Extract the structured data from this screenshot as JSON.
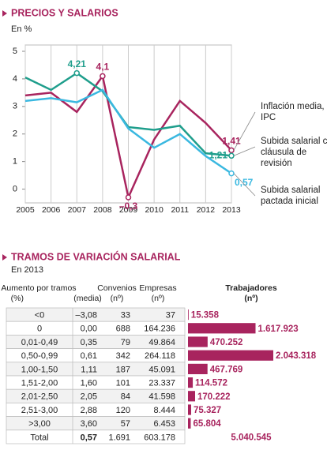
{
  "chart_data": {
    "type": "line",
    "title": "PRECIOS Y SALARIOS",
    "subtitle": "En %",
    "x": [
      2005,
      2006,
      2007,
      2008,
      2009,
      2010,
      2011,
      2012,
      2013
    ],
    "xlim": [
      2005,
      2013
    ],
    "xticks": [
      2005,
      2006,
      2007,
      2008,
      2009,
      2010,
      2011,
      2012,
      2013
    ],
    "ylim": [
      -0.5,
      5
    ],
    "yticks": [
      0,
      1,
      2,
      3,
      4,
      5
    ],
    "grid": true,
    "series": [
      {
        "name": "Inflación media, IPC",
        "color": "#a8245e",
        "values": [
          3.4,
          3.5,
          2.8,
          4.1,
          -0.3,
          1.8,
          3.2,
          2.4,
          1.41
        ],
        "value_labels": [
          null,
          null,
          null,
          "4,1",
          "–0,3",
          null,
          null,
          null,
          "1,41"
        ]
      },
      {
        "name": "Subida salarial con cláusula de revisión",
        "color": "#1f9e8c",
        "values": [
          4.05,
          3.6,
          4.21,
          3.55,
          2.25,
          2.15,
          2.3,
          1.3,
          1.21
        ],
        "value_labels": [
          null,
          null,
          "4,21",
          null,
          null,
          null,
          null,
          null,
          "1,21"
        ]
      },
      {
        "name": "Subida salarial pactada inicial",
        "color": "#3ab8e0",
        "values": [
          3.2,
          3.3,
          3.15,
          3.6,
          2.2,
          1.5,
          2.0,
          1.2,
          0.57
        ],
        "value_labels": [
          null,
          null,
          null,
          null,
          null,
          null,
          null,
          null,
          "0,57"
        ]
      }
    ]
  },
  "table": {
    "title": "TRAMOS DE VARIACIÓN SALARIAL",
    "subtitle": "En 2013",
    "columns": [
      {
        "name": "Aumento por tramos",
        "unit": "(%)"
      },
      {
        "unit": "(media)"
      },
      {
        "name": "Convenios",
        "unit": "(nº)"
      },
      {
        "name": "Empresas",
        "unit": "(nº)"
      },
      {
        "name": "Trabajadores",
        "unit": "(nº)"
      }
    ],
    "rows": [
      [
        "<0",
        "–3,08",
        "33",
        "37"
      ],
      [
        "0",
        "0,00",
        "688",
        "164.236"
      ],
      [
        "0,01-0,49",
        "0,35",
        "79",
        "49.864"
      ],
      [
        "0,50-0,99",
        "0,61",
        "342",
        "264.118"
      ],
      [
        "1,00-1,50",
        "1,11",
        "187",
        "45.091"
      ],
      [
        "1,51-2,00",
        "1,60",
        "101",
        "23.337"
      ],
      [
        "2,01-2,50",
        "2,05",
        "84",
        "41.598"
      ],
      [
        "2,51-3,00",
        "2,88",
        "120",
        "8.444"
      ],
      [
        ">3,00",
        "3,60",
        "57",
        "6.453"
      ]
    ],
    "workers": {
      "color": "#a8245e",
      "values": [
        15358,
        1617923,
        470252,
        2043318,
        467769,
        114572,
        170222,
        75327,
        65804
      ],
      "value_labels": [
        "15.358",
        "1.617.923",
        "470.252",
        "2.043.318",
        "467.769",
        "114.572",
        "170.222",
        "75.327",
        "65.804"
      ]
    },
    "total": [
      "Total",
      "0,57",
      "1.691",
      "603.178",
      "5.040.545"
    ]
  }
}
